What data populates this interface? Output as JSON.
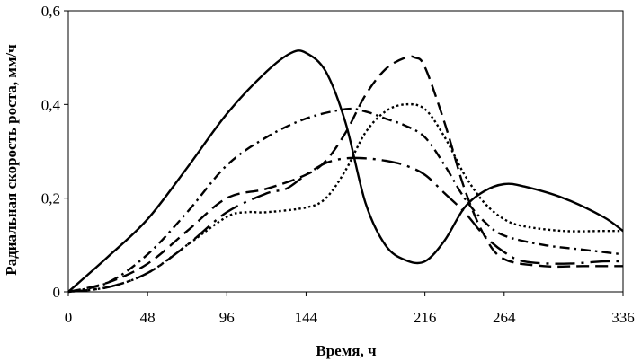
{
  "chart_data": {
    "type": "line",
    "title": "",
    "xlabel": "Время, ч",
    "ylabel": "Радиальная скорость роста, мм/ч",
    "xlim": [
      0,
      336
    ],
    "ylim": [
      0,
      0.6
    ],
    "x_ticks": [
      0,
      48,
      96,
      144,
      216,
      264,
      336
    ],
    "x_tick_labels": [
      "0",
      "48",
      "96",
      "144",
      "216",
      "264",
      "336"
    ],
    "y_ticks": [
      0,
      0.2,
      0.4,
      0.6
    ],
    "y_tick_labels": [
      "0",
      "0,2",
      "0,4",
      "0,6"
    ],
    "grid": false,
    "legend": "none",
    "series": [
      {
        "style": "solid",
        "color": "#000000",
        "points": [
          [
            0,
            0
          ],
          [
            24,
            0.075
          ],
          [
            48,
            0.155
          ],
          [
            72,
            0.265
          ],
          [
            96,
            0.38
          ],
          [
            120,
            0.47
          ],
          [
            135,
            0.51
          ],
          [
            144,
            0.51
          ],
          [
            156,
            0.47
          ],
          [
            168,
            0.36
          ],
          [
            180,
            0.19
          ],
          [
            192,
            0.1
          ],
          [
            204,
            0.068
          ],
          [
            216,
            0.065
          ],
          [
            228,
            0.11
          ],
          [
            240,
            0.18
          ],
          [
            252,
            0.215
          ],
          [
            264,
            0.23
          ],
          [
            276,
            0.225
          ],
          [
            300,
            0.2
          ],
          [
            324,
            0.16
          ],
          [
            336,
            0.13
          ]
        ]
      },
      {
        "style": "dash",
        "color": "#000000",
        "points": [
          [
            0,
            0
          ],
          [
            24,
            0.02
          ],
          [
            48,
            0.06
          ],
          [
            72,
            0.13
          ],
          [
            96,
            0.2
          ],
          [
            120,
            0.22
          ],
          [
            144,
            0.25
          ],
          [
            156,
            0.28
          ],
          [
            168,
            0.34
          ],
          [
            180,
            0.42
          ],
          [
            192,
            0.475
          ],
          [
            204,
            0.5
          ],
          [
            210,
            0.5
          ],
          [
            216,
            0.48
          ],
          [
            228,
            0.36
          ],
          [
            240,
            0.22
          ],
          [
            252,
            0.12
          ],
          [
            264,
            0.07
          ],
          [
            288,
            0.055
          ],
          [
            312,
            0.055
          ],
          [
            336,
            0.055
          ]
        ]
      },
      {
        "style": "dot",
        "color": "#000000",
        "points": [
          [
            0,
            0
          ],
          [
            24,
            0.01
          ],
          [
            48,
            0.04
          ],
          [
            72,
            0.1
          ],
          [
            96,
            0.16
          ],
          [
            108,
            0.17
          ],
          [
            120,
            0.17
          ],
          [
            144,
            0.18
          ],
          [
            156,
            0.2
          ],
          [
            168,
            0.26
          ],
          [
            180,
            0.34
          ],
          [
            192,
            0.385
          ],
          [
            204,
            0.4
          ],
          [
            216,
            0.39
          ],
          [
            228,
            0.33
          ],
          [
            240,
            0.25
          ],
          [
            252,
            0.19
          ],
          [
            264,
            0.155
          ],
          [
            276,
            0.14
          ],
          [
            300,
            0.13
          ],
          [
            324,
            0.13
          ],
          [
            336,
            0.13
          ]
        ]
      },
      {
        "style": "dashdot",
        "color": "#000000",
        "points": [
          [
            0,
            0
          ],
          [
            24,
            0.02
          ],
          [
            48,
            0.08
          ],
          [
            72,
            0.17
          ],
          [
            96,
            0.27
          ],
          [
            120,
            0.33
          ],
          [
            144,
            0.37
          ],
          [
            168,
            0.39
          ],
          [
            180,
            0.385
          ],
          [
            192,
            0.37
          ],
          [
            204,
            0.355
          ],
          [
            216,
            0.33
          ],
          [
            228,
            0.27
          ],
          [
            240,
            0.2
          ],
          [
            252,
            0.15
          ],
          [
            264,
            0.12
          ],
          [
            288,
            0.1
          ],
          [
            312,
            0.09
          ],
          [
            336,
            0.08
          ]
        ]
      },
      {
        "style": "longdashdot",
        "color": "#000000",
        "points": [
          [
            0,
            0
          ],
          [
            24,
            0.01
          ],
          [
            48,
            0.04
          ],
          [
            72,
            0.1
          ],
          [
            96,
            0.17
          ],
          [
            120,
            0.21
          ],
          [
            132,
            0.22
          ],
          [
            144,
            0.25
          ],
          [
            156,
            0.275
          ],
          [
            168,
            0.285
          ],
          [
            180,
            0.285
          ],
          [
            192,
            0.28
          ],
          [
            204,
            0.27
          ],
          [
            216,
            0.25
          ],
          [
            228,
            0.21
          ],
          [
            240,
            0.17
          ],
          [
            252,
            0.12
          ],
          [
            264,
            0.085
          ],
          [
            276,
            0.065
          ],
          [
            300,
            0.06
          ],
          [
            324,
            0.065
          ],
          [
            336,
            0.065
          ]
        ]
      }
    ]
  }
}
